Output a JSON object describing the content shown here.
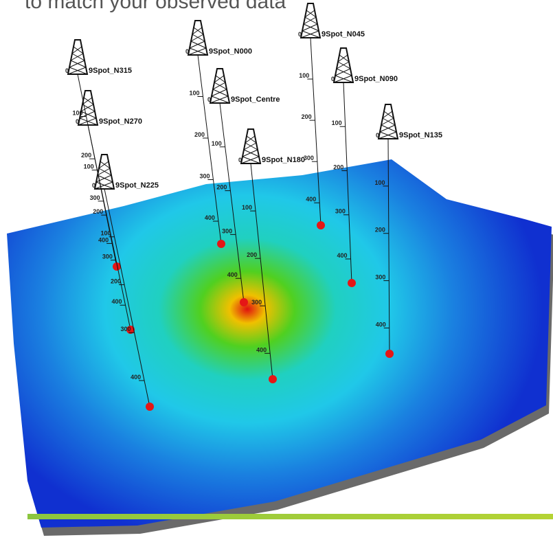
{
  "heading": "to match your observed data",
  "wells": [
    {
      "name": "9Spot_N315",
      "depth_labels": [
        0,
        100,
        200,
        300,
        400
      ]
    },
    {
      "name": "9Spot_N270",
      "depth_labels": [
        0,
        100,
        200,
        300,
        400
      ]
    },
    {
      "name": "9Spot_N225",
      "depth_labels": [
        0,
        100,
        200,
        300,
        400
      ]
    },
    {
      "name": "9Spot_N000",
      "depth_labels": [
        0,
        100,
        200,
        300,
        400
      ]
    },
    {
      "name": "9Spot_Centre",
      "depth_labels": [
        0,
        100,
        200,
        300,
        400
      ]
    },
    {
      "name": "9Spot_N180",
      "depth_labels": [
        0,
        100,
        200,
        300,
        400
      ]
    },
    {
      "name": "9Spot_N045",
      "depth_labels": [
        0,
        100,
        200,
        300,
        400
      ]
    },
    {
      "name": "9Spot_N090",
      "depth_labels": [
        0,
        100,
        200,
        300,
        400
      ]
    },
    {
      "name": "9Spot_N135",
      "depth_labels": [
        0,
        100,
        200,
        300,
        400
      ]
    }
  ]
}
